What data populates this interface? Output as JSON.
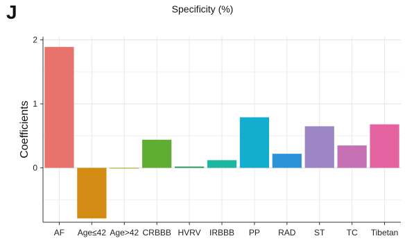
{
  "panel_letter": "J",
  "chart_data": {
    "type": "bar",
    "title": "Specificity (%)",
    "xlabel": "",
    "ylabel": "Coefficients",
    "categories": [
      "AF",
      "Age≤42",
      "Age>42",
      "CRBBB",
      "HVRV",
      "IRBBB",
      "PP",
      "RAD",
      "ST",
      "TC",
      "Tibetan"
    ],
    "values": [
      1.89,
      -0.79,
      -0.01,
      0.44,
      0.02,
      0.12,
      0.79,
      0.22,
      0.65,
      0.35,
      0.68
    ],
    "colors": [
      "#E8736C",
      "#D38B13",
      "#A9A823",
      "#5FAD33",
      "#1E9D58",
      "#1BB7A0",
      "#13AECF",
      "#2C93D8",
      "#9B85C3",
      "#C771B4",
      "#E462A0"
    ],
    "yticks": [
      0,
      1,
      2
    ],
    "ylim": [
      -0.8,
      2.0
    ],
    "grid": true,
    "legend": "none"
  }
}
